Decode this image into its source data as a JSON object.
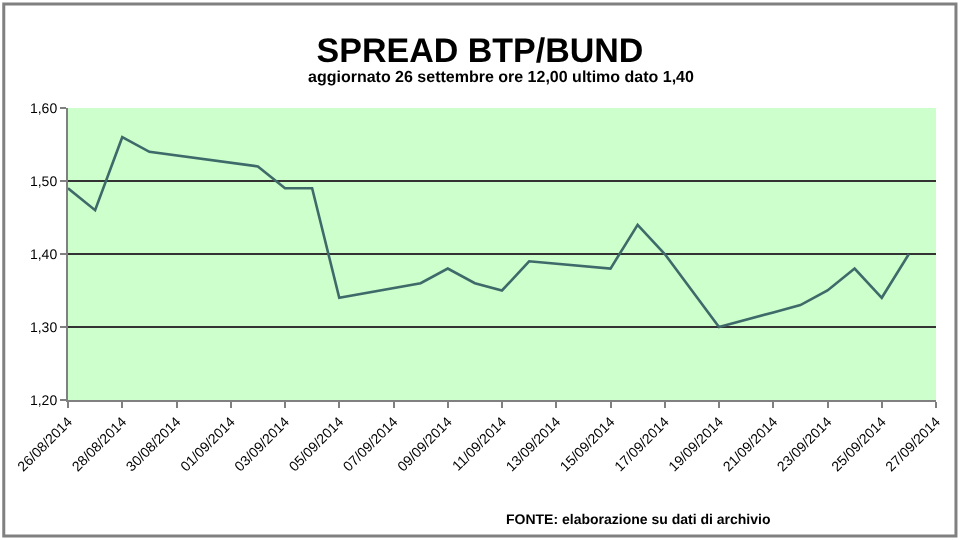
{
  "chart_data": {
    "type": "line",
    "title": "SPREAD BTP/BUND",
    "subtitle": "aggiornato 26 settembre ore 12,00 ultimo dato 1,40",
    "x": [
      "2014-08-26",
      "2014-08-27",
      "2014-08-28",
      "2014-08-29",
      "2014-09-02",
      "2014-09-03",
      "2014-09-04",
      "2014-09-05",
      "2014-09-08",
      "2014-09-09",
      "2014-09-10",
      "2014-09-11",
      "2014-09-12",
      "2014-09-15",
      "2014-09-16",
      "2014-09-17",
      "2014-09-19",
      "2014-09-21",
      "2014-09-22",
      "2014-09-23",
      "2014-09-24",
      "2014-09-25",
      "2014-09-26"
    ],
    "series": [
      {
        "color": "#3f6a6a",
        "values": [
          1.49,
          1.46,
          1.56,
          1.54,
          1.52,
          1.49,
          1.49,
          1.34,
          1.36,
          1.38,
          1.36,
          1.35,
          1.39,
          1.38,
          1.44,
          1.4,
          1.3,
          1.32,
          1.33,
          1.35,
          1.38,
          1.34,
          1.4
        ]
      }
    ],
    "xlim": [
      "2014-08-26",
      "2014-09-27"
    ],
    "xticks": [
      {
        "value": "2014-08-26",
        "label": "26/08/2014"
      },
      {
        "value": "2014-08-28",
        "label": "28/08/2014"
      },
      {
        "value": "2014-08-30",
        "label": "30/08/2014"
      },
      {
        "value": "2014-09-01",
        "label": "01/09/2014"
      },
      {
        "value": "2014-09-03",
        "label": "03/09/2014"
      },
      {
        "value": "2014-09-05",
        "label": "05/09/2014"
      },
      {
        "value": "2014-09-07",
        "label": "07/09/2014"
      },
      {
        "value": "2014-09-09",
        "label": "09/09/2014"
      },
      {
        "value": "2014-09-11",
        "label": "11/09/2014"
      },
      {
        "value": "2014-09-13",
        "label": "13/09/2014"
      },
      {
        "value": "2014-09-15",
        "label": "15/09/2014"
      },
      {
        "value": "2014-09-17",
        "label": "17/09/2014"
      },
      {
        "value": "2014-09-19",
        "label": "19/09/2014"
      },
      {
        "value": "2014-09-21",
        "label": "21/09/2014"
      },
      {
        "value": "2014-09-23",
        "label": "23/09/2014"
      },
      {
        "value": "2014-09-25",
        "label": "25/09/2014"
      },
      {
        "value": "2014-09-27",
        "label": "27/09/2014"
      }
    ],
    "ylim": [
      1.2,
      1.6
    ],
    "yticks": [
      {
        "value": 1.2,
        "label": "1,20"
      },
      {
        "value": 1.3,
        "label": "1,30"
      },
      {
        "value": 1.4,
        "label": "1,40"
      },
      {
        "value": 1.5,
        "label": "1,50"
      },
      {
        "value": 1.6,
        "label": "1,60"
      }
    ],
    "grid": "y",
    "marker": "none",
    "line_style": "solid",
    "annotations": [
      "FONTE: elaborazione su dati di archivio"
    ]
  }
}
